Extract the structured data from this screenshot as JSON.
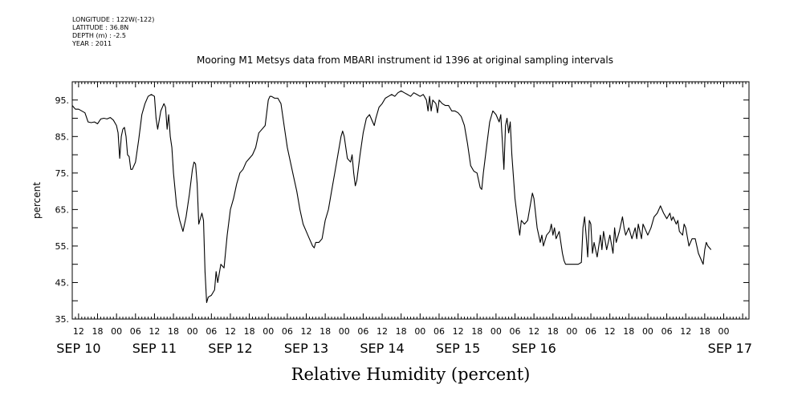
{
  "header": {
    "longitude": "LONGITUDE : 122W(-122)",
    "latitude": "LATITUDE : 36.8N",
    "depth": "DEPTH (m) : -2.5",
    "year": "YEAR : 2011"
  },
  "chart_data": {
    "type": "line",
    "title": "Mooring M1 Metsys data from MBARI instrument id 1396 at original sampling intervals",
    "xlabel": "Relative Humidity (percent)",
    "ylabel": "percent",
    "xlim": [
      -14,
      200
    ],
    "ylim": [
      35,
      100
    ],
    "yticks": [
      35,
      45,
      55,
      65,
      75,
      85,
      95
    ],
    "ytick_labels": [
      "35.",
      "45.",
      "55.",
      "65.",
      "75.",
      "85.",
      "95."
    ],
    "hour_ticks": [
      {
        "h": -12,
        "label": "12"
      },
      {
        "h": -6,
        "label": "18"
      },
      {
        "h": 0,
        "label": "00"
      },
      {
        "h": 6,
        "label": "06"
      },
      {
        "h": 12,
        "label": "12"
      },
      {
        "h": 18,
        "label": "18"
      },
      {
        "h": 24,
        "label": "00"
      },
      {
        "h": 30,
        "label": "06"
      },
      {
        "h": 36,
        "label": "12"
      },
      {
        "h": 42,
        "label": "18"
      },
      {
        "h": 48,
        "label": "00"
      },
      {
        "h": 54,
        "label": "06"
      },
      {
        "h": 60,
        "label": "12"
      },
      {
        "h": 66,
        "label": "18"
      },
      {
        "h": 72,
        "label": "00"
      },
      {
        "h": 78,
        "label": "06"
      },
      {
        "h": 84,
        "label": "12"
      },
      {
        "h": 90,
        "label": "18"
      },
      {
        "h": 96,
        "label": "00"
      },
      {
        "h": 102,
        "label": "06"
      },
      {
        "h": 108,
        "label": "12"
      },
      {
        "h": 114,
        "label": "18"
      },
      {
        "h": 120,
        "label": "00"
      },
      {
        "h": 126,
        "label": "06"
      },
      {
        "h": 132,
        "label": "12"
      },
      {
        "h": 138,
        "label": "18"
      },
      {
        "h": 144,
        "label": "00"
      },
      {
        "h": 150,
        "label": "06"
      },
      {
        "h": 156,
        "label": "12"
      },
      {
        "h": 162,
        "label": "18"
      },
      {
        "h": 168,
        "label": "00"
      },
      {
        "h": 174,
        "label": "06"
      },
      {
        "h": 180,
        "label": "12"
      },
      {
        "h": 186,
        "label": "18"
      },
      {
        "h": 192,
        "label": "00"
      }
    ],
    "date_ticks": [
      {
        "h": -12,
        "label": "SEP 10"
      },
      {
        "h": 12,
        "label": "SEP 11"
      },
      {
        "h": 36,
        "label": "SEP 12"
      },
      {
        "h": 60,
        "label": "SEP 13"
      },
      {
        "h": 84,
        "label": "SEP 14"
      },
      {
        "h": 108,
        "label": "SEP 15"
      },
      {
        "h": 132,
        "label": "SEP 16"
      },
      {
        "h": 194,
        "label": "SEP 17"
      }
    ],
    "series": [
      {
        "values": [
          [
            -14,
            93.5
          ],
          [
            -13,
            92.5
          ],
          [
            -12,
            92.5
          ],
          [
            -10,
            91.5
          ],
          [
            -9,
            89
          ],
          [
            -8,
            88.8
          ],
          [
            -7,
            89
          ],
          [
            -6,
            88.5
          ],
          [
            -5,
            89.8
          ],
          [
            -4,
            90
          ],
          [
            -3,
            89.8
          ],
          [
            -2,
            90.2
          ],
          [
            -1,
            89.5
          ],
          [
            0,
            88
          ],
          [
            0.5,
            86
          ],
          [
            1,
            79
          ],
          [
            1.5,
            85
          ],
          [
            2,
            87
          ],
          [
            2.5,
            87.5
          ],
          [
            3,
            85
          ],
          [
            3.5,
            80
          ],
          [
            4,
            79.5
          ],
          [
            4.5,
            76
          ],
          [
            5,
            76
          ],
          [
            6,
            78
          ],
          [
            7,
            84
          ],
          [
            8,
            91
          ],
          [
            9,
            94
          ],
          [
            10,
            96
          ],
          [
            11,
            96.5
          ],
          [
            12,
            96
          ],
          [
            12.5,
            90
          ],
          [
            13,
            87
          ],
          [
            14,
            92
          ],
          [
            15,
            94
          ],
          [
            15.5,
            93
          ],
          [
            16,
            87
          ],
          [
            16.5,
            91
          ],
          [
            17,
            85
          ],
          [
            17.5,
            82
          ],
          [
            18,
            75
          ],
          [
            19,
            66
          ],
          [
            20,
            62
          ],
          [
            21,
            59
          ],
          [
            22,
            63
          ],
          [
            23,
            69
          ],
          [
            24,
            76
          ],
          [
            24.5,
            78
          ],
          [
            25,
            77.5
          ],
          [
            25.5,
            72
          ],
          [
            26,
            61
          ],
          [
            27,
            64
          ],
          [
            27.5,
            62
          ],
          [
            28,
            48
          ],
          [
            28.5,
            39.5
          ],
          [
            29,
            41
          ],
          [
            30,
            41.5
          ],
          [
            31,
            43
          ],
          [
            31.5,
            48
          ],
          [
            32,
            45
          ],
          [
            33,
            50
          ],
          [
            34,
            49
          ],
          [
            35,
            58
          ],
          [
            36,
            65
          ],
          [
            37,
            68
          ],
          [
            38,
            72
          ],
          [
            39,
            75
          ],
          [
            40,
            76
          ],
          [
            41,
            78
          ],
          [
            42,
            79
          ],
          [
            43,
            80
          ],
          [
            44,
            82
          ],
          [
            45,
            86
          ],
          [
            46,
            87
          ],
          [
            47,
            88
          ],
          [
            48,
            95
          ],
          [
            48.5,
            96
          ],
          [
            49,
            96
          ],
          [
            50,
            95.5
          ],
          [
            51,
            95.5
          ],
          [
            52,
            94
          ],
          [
            53,
            88
          ],
          [
            54,
            82
          ],
          [
            55,
            78
          ],
          [
            56,
            74
          ],
          [
            57,
            70
          ],
          [
            58,
            65
          ],
          [
            59,
            61
          ],
          [
            60,
            59
          ],
          [
            61,
            57
          ],
          [
            62,
            55
          ],
          [
            62.5,
            54.5
          ],
          [
            63,
            56
          ],
          [
            64,
            56
          ],
          [
            65,
            57
          ],
          [
            66,
            62
          ],
          [
            67,
            65
          ],
          [
            68,
            70
          ],
          [
            69,
            75
          ],
          [
            70,
            80
          ],
          [
            71,
            85
          ],
          [
            71.5,
            86.5
          ],
          [
            72,
            85
          ],
          [
            73,
            79
          ],
          [
            74,
            78
          ],
          [
            74.5,
            80
          ],
          [
            75,
            75
          ],
          [
            75.5,
            71.5
          ],
          [
            76,
            73
          ],
          [
            77,
            80
          ],
          [
            78,
            86
          ],
          [
            79,
            90
          ],
          [
            80,
            91
          ],
          [
            81,
            89
          ],
          [
            81.5,
            88
          ],
          [
            82,
            90
          ],
          [
            83,
            93
          ],
          [
            84,
            94
          ],
          [
            85,
            95.5
          ],
          [
            86,
            96
          ],
          [
            87,
            96.5
          ],
          [
            88,
            96
          ],
          [
            89,
            97
          ],
          [
            90,
            97.5
          ],
          [
            91,
            97
          ],
          [
            92,
            96.5
          ],
          [
            93,
            96
          ],
          [
            94,
            97
          ],
          [
            95,
            96.5
          ],
          [
            96,
            96
          ],
          [
            97,
            96.5
          ],
          [
            98,
            95
          ],
          [
            98.5,
            92
          ],
          [
            99,
            96
          ],
          [
            99.5,
            92
          ],
          [
            100,
            95
          ],
          [
            101,
            94
          ],
          [
            101.5,
            91.5
          ],
          [
            102,
            95
          ],
          [
            103,
            94
          ],
          [
            104,
            93.5
          ],
          [
            105,
            93.5
          ],
          [
            106,
            92
          ],
          [
            107,
            92
          ],
          [
            108,
            91.5
          ],
          [
            109,
            90.5
          ],
          [
            110,
            88
          ],
          [
            111,
            83
          ],
          [
            112,
            77
          ],
          [
            113,
            75.5
          ],
          [
            114,
            75
          ],
          [
            115,
            71
          ],
          [
            115.5,
            70.5
          ],
          [
            116,
            75
          ],
          [
            117,
            82
          ],
          [
            118,
            89
          ],
          [
            119,
            92
          ],
          [
            120,
            91
          ],
          [
            121,
            89
          ],
          [
            121.5,
            91
          ],
          [
            122,
            84
          ],
          [
            122.5,
            76
          ],
          [
            123,
            88
          ],
          [
            123.5,
            90
          ],
          [
            124,
            86
          ],
          [
            124.5,
            89
          ],
          [
            125,
            80
          ],
          [
            126,
            68
          ],
          [
            127,
            61
          ],
          [
            127.5,
            58
          ],
          [
            128,
            62
          ],
          [
            129,
            61
          ],
          [
            130,
            62
          ],
          [
            131,
            67
          ],
          [
            131.5,
            69.5
          ],
          [
            132,
            68
          ],
          [
            133,
            60
          ],
          [
            134,
            56
          ],
          [
            134.5,
            58
          ],
          [
            135,
            55
          ],
          [
            136,
            58
          ],
          [
            137,
            59
          ],
          [
            137.5,
            61
          ],
          [
            138,
            58
          ],
          [
            138.5,
            60
          ],
          [
            139,
            57
          ],
          [
            140,
            59
          ],
          [
            141,
            53
          ],
          [
            141.5,
            51
          ],
          [
            142,
            50
          ],
          [
            143,
            50
          ],
          [
            144,
            50
          ],
          [
            145,
            50
          ],
          [
            146,
            50
          ],
          [
            147,
            50.5
          ],
          [
            147.5,
            60
          ],
          [
            148,
            63
          ],
          [
            148.5,
            58
          ],
          [
            149,
            52
          ],
          [
            149.5,
            62
          ],
          [
            150,
            61
          ],
          [
            150.5,
            53
          ],
          [
            151,
            56
          ],
          [
            152,
            52
          ],
          [
            153,
            58
          ],
          [
            153.5,
            54
          ],
          [
            154,
            59
          ],
          [
            155,
            54
          ],
          [
            156,
            58
          ],
          [
            157,
            53
          ],
          [
            157.5,
            60
          ],
          [
            158,
            56
          ],
          [
            159,
            59
          ],
          [
            160,
            63
          ],
          [
            160.5,
            60
          ],
          [
            161,
            58
          ],
          [
            162,
            60
          ],
          [
            163,
            57
          ],
          [
            164,
            60
          ],
          [
            164.5,
            57
          ],
          [
            165,
            61
          ],
          [
            166,
            57
          ],
          [
            166.5,
            61
          ],
          [
            167,
            60
          ],
          [
            168,
            58
          ],
          [
            169,
            60
          ],
          [
            170,
            63
          ],
          [
            171,
            64
          ],
          [
            172,
            66
          ],
          [
            173,
            64
          ],
          [
            174,
            62.5
          ],
          [
            175,
            64
          ],
          [
            175.5,
            62
          ],
          [
            176,
            63
          ],
          [
            177,
            61
          ],
          [
            177.5,
            62
          ],
          [
            178,
            59
          ],
          [
            179,
            58
          ],
          [
            179.5,
            61
          ],
          [
            180,
            60
          ],
          [
            181,
            55
          ],
          [
            182,
            57
          ],
          [
            183,
            57
          ],
          [
            184,
            53
          ],
          [
            185,
            51
          ],
          [
            185.5,
            50
          ],
          [
            186,
            54
          ],
          [
            186.5,
            56
          ],
          [
            187,
            55
          ],
          [
            188,
            54
          ]
        ]
      }
    ]
  }
}
